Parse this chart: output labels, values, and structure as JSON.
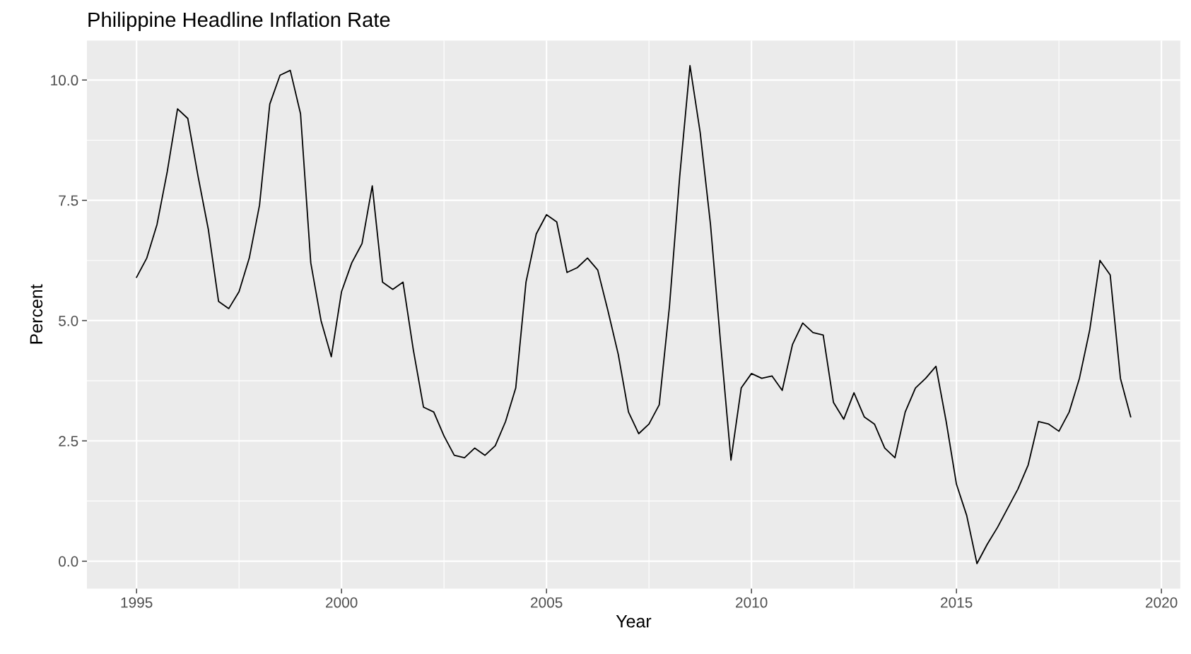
{
  "chart_data": {
    "type": "line",
    "title": "Philippine Headline Inflation Rate",
    "xlabel": "Year",
    "ylabel": "Percent",
    "x": [
      1995.0,
      1995.25,
      1995.5,
      1995.75,
      1996.0,
      1996.25,
      1996.5,
      1996.75,
      1997.0,
      1997.25,
      1997.5,
      1997.75,
      1998.0,
      1998.25,
      1998.5,
      1998.75,
      1999.0,
      1999.25,
      1999.5,
      1999.75,
      2000.0,
      2000.25,
      2000.5,
      2000.75,
      2001.0,
      2001.25,
      2001.5,
      2001.75,
      2002.0,
      2002.25,
      2002.5,
      2002.75,
      2003.0,
      2003.25,
      2003.5,
      2003.75,
      2004.0,
      2004.25,
      2004.5,
      2004.75,
      2005.0,
      2005.25,
      2005.5,
      2005.75,
      2006.0,
      2006.25,
      2006.5,
      2006.75,
      2007.0,
      2007.25,
      2007.5,
      2007.75,
      2008.0,
      2008.25,
      2008.5,
      2008.75,
      2009.0,
      2009.25,
      2009.5,
      2009.75,
      2010.0,
      2010.25,
      2010.5,
      2010.75,
      2011.0,
      2011.25,
      2011.5,
      2011.75,
      2012.0,
      2012.25,
      2012.5,
      2012.75,
      2013.0,
      2013.25,
      2013.5,
      2013.75,
      2014.0,
      2014.25,
      2014.5,
      2014.75,
      2015.0,
      2015.25,
      2015.5,
      2015.75,
      2016.0,
      2016.25,
      2016.5,
      2016.75,
      2017.0,
      2017.25,
      2017.5,
      2017.75,
      2018.0,
      2018.25,
      2018.5,
      2018.75,
      2019.0,
      2019.25
    ],
    "series": [
      {
        "color": "#000000",
        "values": [
          5.9,
          6.3,
          7.0,
          8.1,
          9.4,
          9.2,
          8.0,
          6.9,
          5.4,
          5.25,
          5.6,
          6.3,
          7.4,
          9.5,
          10.1,
          10.2,
          9.3,
          6.2,
          5.0,
          4.25,
          5.6,
          6.2,
          6.6,
          7.8,
          5.8,
          5.65,
          5.8,
          4.4,
          3.2,
          3.1,
          2.6,
          2.2,
          2.15,
          2.35,
          2.2,
          2.4,
          2.9,
          3.6,
          5.8,
          6.8,
          7.2,
          7.05,
          6.0,
          6.1,
          6.3,
          6.05,
          5.2,
          4.3,
          3.1,
          2.65,
          2.85,
          3.25,
          5.3,
          8.0,
          10.3,
          8.9,
          7.0,
          4.5,
          2.1,
          3.6,
          3.9,
          3.8,
          3.85,
          3.55,
          4.5,
          4.95,
          4.75,
          4.7,
          3.3,
          2.95,
          3.5,
          3.0,
          2.85,
          2.35,
          2.15,
          3.1,
          3.6,
          3.8,
          4.05,
          2.9,
          1.6,
          0.95,
          -0.05,
          0.35,
          0.7,
          1.1,
          1.5,
          2.0,
          2.9,
          2.85,
          2.7,
          3.1,
          3.8,
          4.8,
          6.25,
          5.95,
          3.8,
          3.0
        ]
      }
    ],
    "xlim": [
      1993.79,
      2020.46
    ],
    "xticks": [
      1995,
      2000,
      2005,
      2010,
      2015,
      2020
    ],
    "ylim": [
      -0.57,
      10.82
    ],
    "yticks": [
      {
        "value": 0,
        "label": "0.0"
      },
      {
        "value": 2.5,
        "label": "2.5"
      },
      {
        "value": 5,
        "label": "5.0"
      },
      {
        "value": 7.5,
        "label": "7.5"
      },
      {
        "value": 10,
        "label": "10.0"
      }
    ],
    "grid": true,
    "line_style": "solid"
  }
}
